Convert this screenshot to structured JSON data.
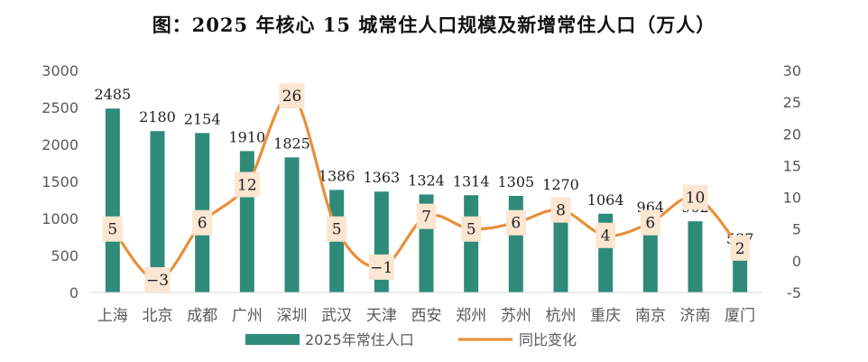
{
  "chart_data": {
    "type": "bar",
    "title": "图：2025 年核心 15 城常住人口规模及新增常住人口（万人）",
    "categories": [
      "上海",
      "北京",
      "成都",
      "广州",
      "深圳",
      "武汉",
      "天津",
      "西安",
      "郑州",
      "苏州",
      "杭州",
      "重庆",
      "南京",
      "济南",
      "厦门"
    ],
    "series": [
      {
        "name": "2025年常住人口",
        "type": "bar",
        "axis": "left",
        "color": "#2E8B7A",
        "values": [
          2485,
          2180,
          2154,
          1910,
          1825,
          1386,
          1363,
          1324,
          1314,
          1305,
          1270,
          1064,
          964,
          962,
          537
        ]
      },
      {
        "name": "同比变化",
        "type": "line",
        "axis": "right",
        "color": "#E8903A",
        "values": [
          5,
          -3,
          6,
          12,
          26,
          5,
          -1,
          7,
          5,
          6,
          8,
          4,
          6,
          10,
          2
        ]
      }
    ],
    "y_left": {
      "range": [
        0,
        3000
      ],
      "ticks": [
        0,
        500,
        1000,
        1500,
        2000,
        2500,
        3000
      ]
    },
    "y_right": {
      "range": [
        -5,
        30
      ],
      "ticks": [
        -5,
        0,
        5,
        10,
        15,
        20,
        25,
        30
      ]
    },
    "grid": false,
    "legend_position": "bottom"
  }
}
